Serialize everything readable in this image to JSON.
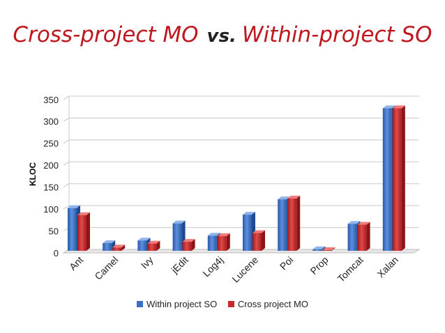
{
  "title": {
    "part1": "Cross-project MO",
    "vs": "vs.",
    "part2": "Within-project SO"
  },
  "chart_data": {
    "type": "bar",
    "title": "Cross-project MO vs. Within-project SO",
    "xlabel": "",
    "ylabel": "KLOC",
    "ylim": [
      0,
      350
    ],
    "yticks": [
      0,
      50,
      100,
      150,
      200,
      250,
      300,
      350
    ],
    "grid": true,
    "legend_position": "bottom",
    "categories": [
      "Ant",
      "Camel",
      "Ivy",
      "jEdit",
      "Log4j",
      "Lucene",
      "Poi",
      "Prop",
      "Tomcat",
      "Xalan"
    ],
    "series": [
      {
        "name": "Within project SO",
        "color": "#3a6fc4",
        "values": [
          102,
          22,
          28,
          67,
          39,
          87,
          122,
          8,
          66,
          330
        ]
      },
      {
        "name": "Cross project MO",
        "color": "#c8282b",
        "values": [
          86,
          12,
          21,
          25,
          38,
          45,
          124,
          6,
          64,
          330
        ]
      }
    ]
  }
}
